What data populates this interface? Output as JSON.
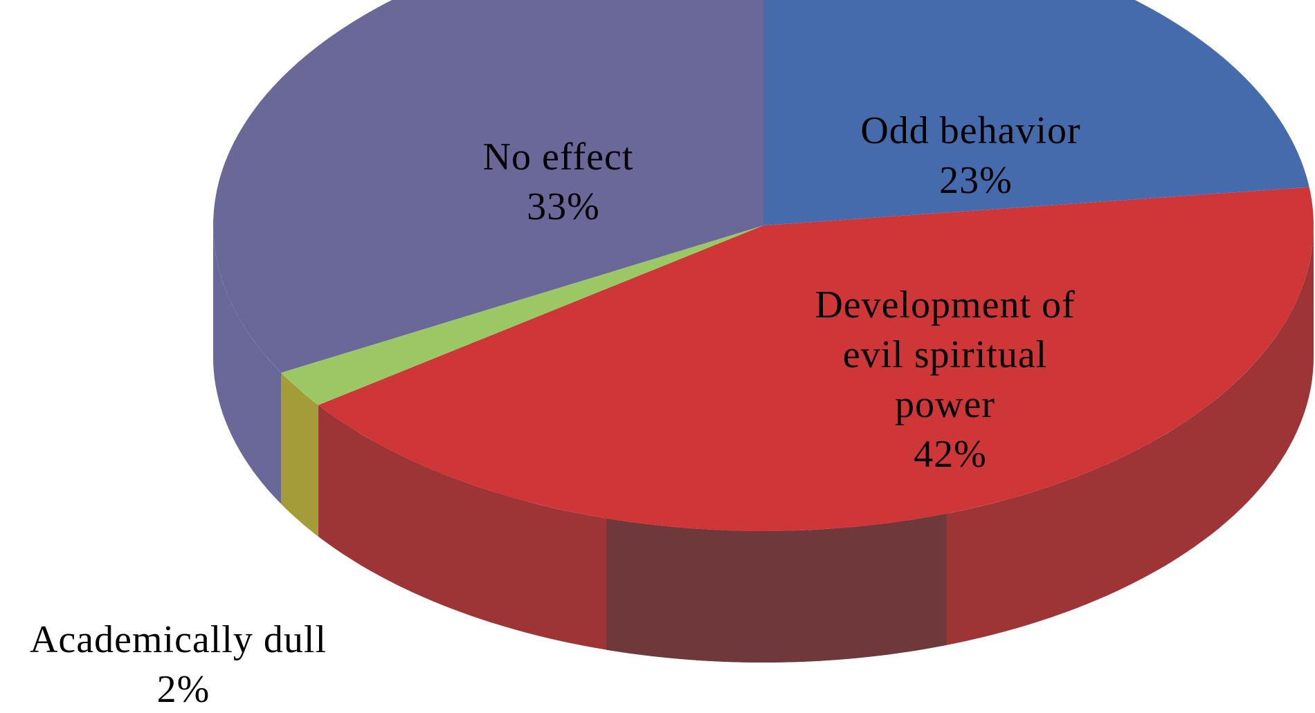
{
  "chart_data": {
    "type": "pie",
    "style": "3d",
    "title": "",
    "categories": [
      "Odd behavior",
      "Development of evil spiritual power",
      "Academically dull",
      "No effect"
    ],
    "values": [
      23,
      42,
      2,
      33
    ],
    "unit": "%",
    "labels": [
      {
        "lines": [
          "Odd behavior",
          "23%"
        ]
      },
      {
        "lines": [
          "Development of",
          "evil spiritual",
          "power",
          "42%"
        ]
      },
      {
        "lines": [
          "Academically dull",
          "2%"
        ]
      },
      {
        "lines": [
          "No effect",
          "33%"
        ]
      }
    ],
    "colors": [
      "#466BAD",
      "#CE3638",
      "#9BC865",
      "#6A6899"
    ],
    "side_colors": [
      "#373C42",
      "#9D3537",
      "#A39C39",
      "#6A6899"
    ],
    "legend": "none"
  }
}
